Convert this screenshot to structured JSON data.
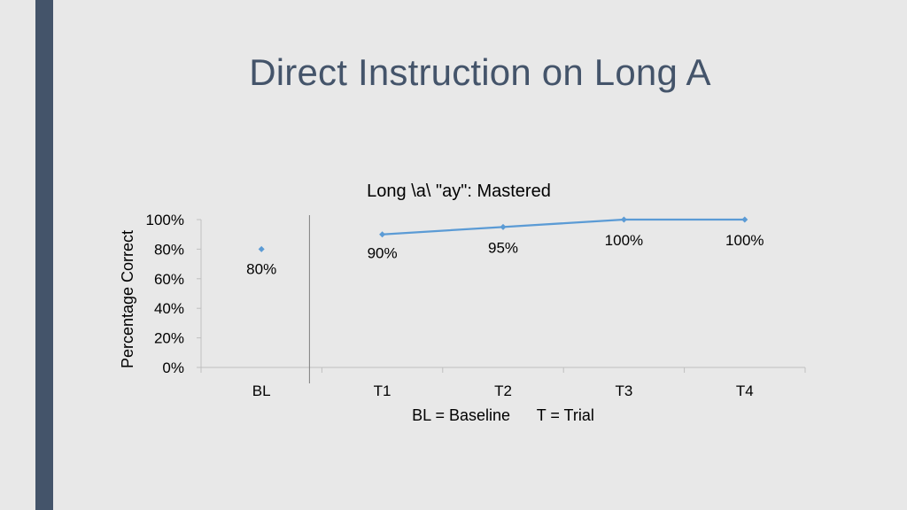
{
  "slide": {
    "title": "Direct Instruction on Long A"
  },
  "colors": {
    "sidebar": "#44546a",
    "series": "#5b9bd5",
    "axis": "#bfbfbf",
    "background": "#e8e8e8"
  },
  "chart_data": {
    "type": "line",
    "title": "Long \\a\\ \"ay\": Mastered",
    "ylabel": "Percentage Correct",
    "xlabel": "BL = Baseline      T = Trial",
    "categories": [
      "BL",
      "T1",
      "T2",
      "T3",
      "T4"
    ],
    "ylim": [
      0,
      1
    ],
    "yticks": [
      "0%",
      "20%",
      "40%",
      "60%",
      "80%",
      "100%"
    ],
    "ytick_values": [
      0,
      0.2,
      0.4,
      0.6,
      0.8,
      1.0
    ],
    "phase_line_after": "BL",
    "grid": false,
    "series": [
      {
        "phase": "baseline",
        "points": [
          {
            "x": "BL",
            "y": 0.8,
            "label": "80%"
          }
        ]
      },
      {
        "phase": "treatment",
        "points": [
          {
            "x": "T1",
            "y": 0.9,
            "label": "90%"
          },
          {
            "x": "T2",
            "y": 0.95,
            "label": "95%"
          },
          {
            "x": "T3",
            "y": 1.0,
            "label": "100%"
          },
          {
            "x": "T4",
            "y": 1.0,
            "label": "100%"
          }
        ]
      }
    ]
  }
}
